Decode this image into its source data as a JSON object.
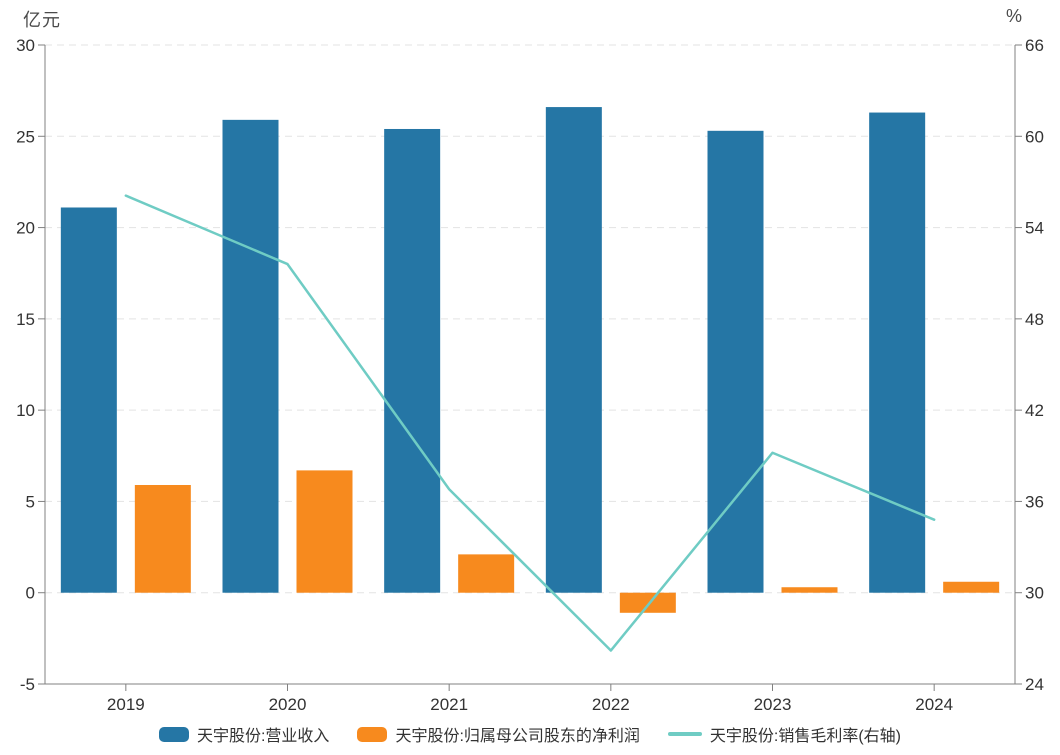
{
  "chart_data": {
    "type": "bar",
    "subtype": "grouped-bars-with-line-combo",
    "categories": [
      "2019",
      "2020",
      "2021",
      "2022",
      "2023",
      "2024"
    ],
    "series": [
      {
        "name": "天宇股份:营业收入",
        "type": "bar",
        "axis": "left",
        "color": "#2576A5",
        "values": [
          21.1,
          25.9,
          25.4,
          26.6,
          25.3,
          26.3
        ]
      },
      {
        "name": "天宇股份:归属母公司股东的净利润",
        "type": "bar",
        "axis": "left",
        "color": "#F78A1E",
        "values": [
          5.9,
          6.7,
          2.1,
          -1.1,
          0.3,
          0.6
        ]
      },
      {
        "name": "天宇股份:销售毛利率(右轴)",
        "type": "line",
        "axis": "right",
        "color": "#6FCCC4",
        "values": [
          56.1,
          51.6,
          36.8,
          26.2,
          39.2,
          34.8
        ]
      }
    ],
    "left_axis": {
      "title": "亿元",
      "min": -5,
      "max": 30,
      "ticks": [
        30,
        25,
        20,
        15,
        10,
        5,
        0,
        -5
      ]
    },
    "right_axis": {
      "title": "%",
      "min": 24,
      "max": 66,
      "ticks": [
        66,
        60,
        54,
        48,
        42,
        36,
        30,
        24
      ]
    },
    "grid": "horizontal dashed",
    "legend_position": "bottom center",
    "colors": {
      "grid": "#e3e3e3",
      "axis": "#808080",
      "tick_text": "#333333",
      "background": "#ffffff"
    }
  }
}
